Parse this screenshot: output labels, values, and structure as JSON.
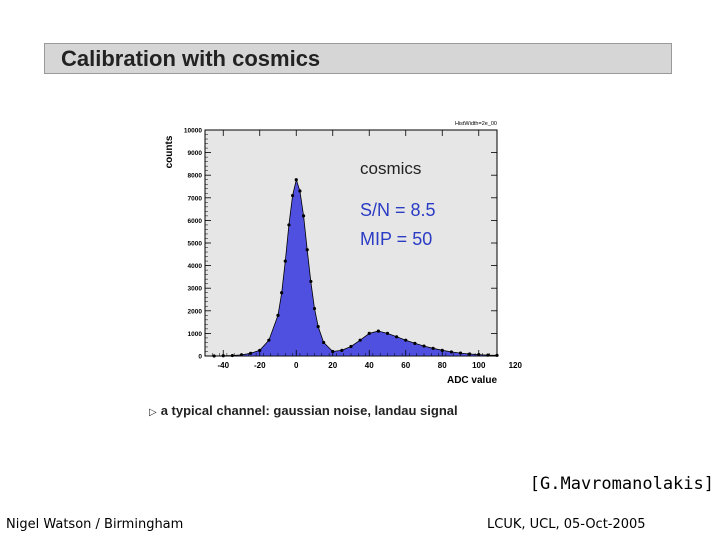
{
  "slide": {
    "title": "Calibration with cosmics",
    "bullet": "a typical channel: gaussian noise, landau signal",
    "bullet_marker": "▷",
    "citation": "[G.Mavromanolakis]",
    "footer_left": "Nigel Watson / Birmingham",
    "footer_right": "LCUK, UCL, 05-Oct-2005"
  },
  "colors": {
    "title_bar": "#d6d6d6",
    "plot_bg": "#e6e6e6",
    "fill": "#5050e0",
    "annotation": "#2b3cc4"
  },
  "chart_data": {
    "type": "area",
    "title": "",
    "xlabel": "ADC value",
    "ylabel": "counts",
    "xlim": [
      -50,
      110
    ],
    "ylim": [
      0,
      10000
    ],
    "xticks": [
      -40,
      -20,
      0,
      20,
      40,
      60,
      80,
      100,
      120
    ],
    "yticks": [
      0,
      1000,
      2000,
      3000,
      4000,
      5000,
      6000,
      7000,
      8000,
      9000,
      10000
    ],
    "corner_label": "HistWidth=2e_00",
    "annotations": [
      "cosmics",
      "S/N = 8.5",
      "MIP = 50"
    ],
    "x": [
      -45,
      -40,
      -35,
      -30,
      -25,
      -20,
      -15,
      -10,
      -8,
      -6,
      -4,
      -2,
      0,
      2,
      4,
      6,
      8,
      10,
      12,
      15,
      20,
      25,
      30,
      35,
      40,
      45,
      50,
      55,
      60,
      65,
      70,
      75,
      80,
      85,
      90,
      95,
      100,
      105,
      110
    ],
    "values": [
      0,
      10,
      20,
      50,
      120,
      250,
      700,
      1800,
      2800,
      4200,
      5800,
      7100,
      7800,
      7300,
      6200,
      4700,
      3300,
      2100,
      1300,
      600,
      200,
      250,
      420,
      700,
      1000,
      1100,
      1000,
      850,
      700,
      560,
      440,
      340,
      250,
      180,
      130,
      90,
      60,
      40,
      30
    ]
  }
}
